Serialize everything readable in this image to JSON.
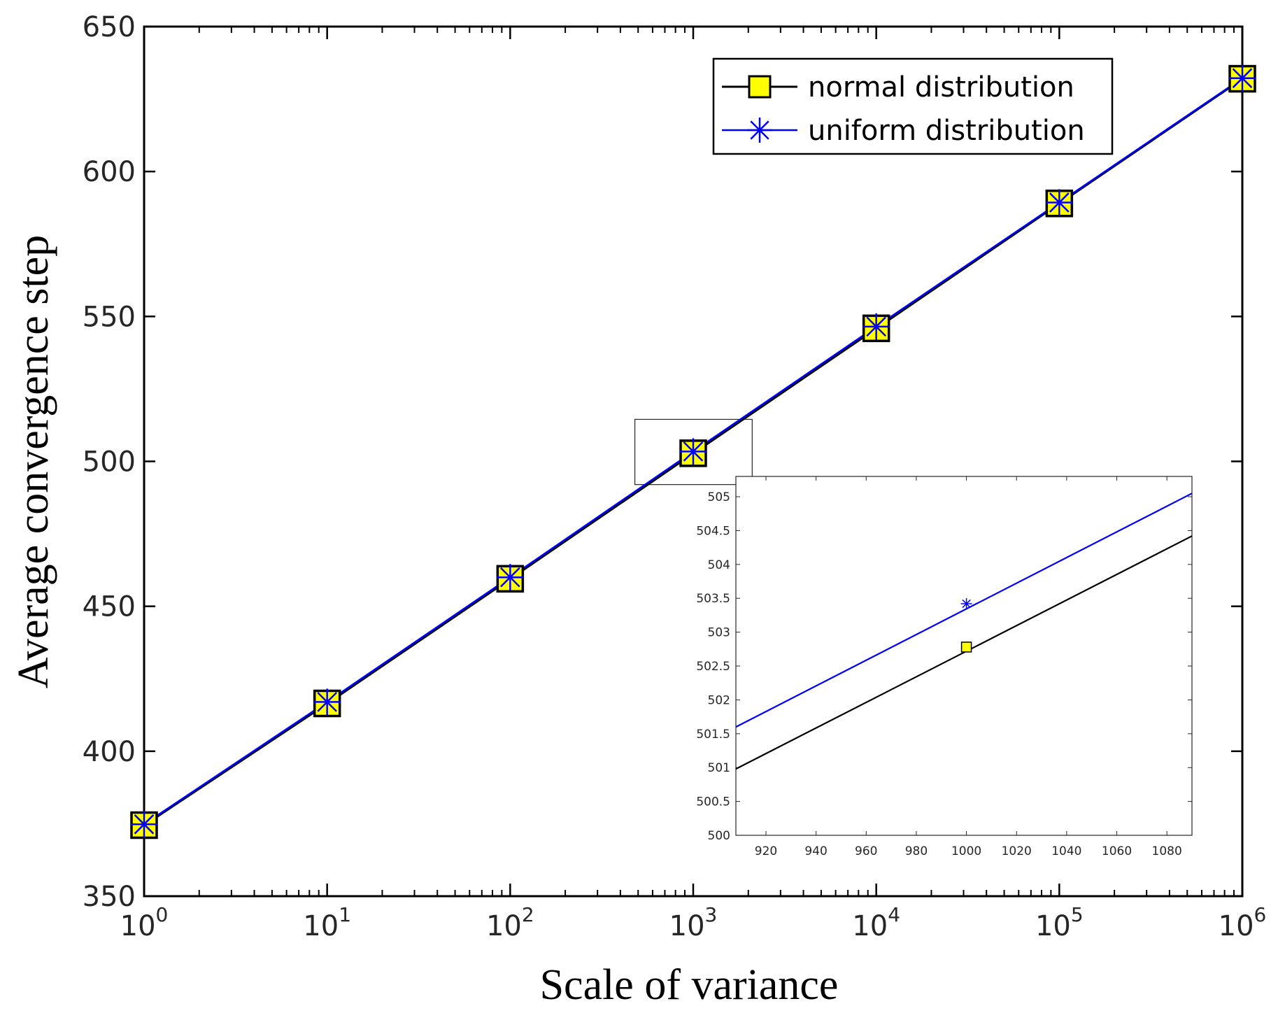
{
  "chart_data": {
    "type": "line",
    "xscale": "log",
    "title": "",
    "xlabel": "Scale of variance",
    "ylabel": "Average convergence step",
    "xlim": [
      1,
      1000000
    ],
    "ylim": [
      350,
      650
    ],
    "x_ticks": [
      {
        "value": 1,
        "base": "10",
        "exp": "0"
      },
      {
        "value": 10,
        "base": "10",
        "exp": "1"
      },
      {
        "value": 100,
        "base": "10",
        "exp": "2"
      },
      {
        "value": 1000,
        "base": "10",
        "exp": "3"
      },
      {
        "value": 10000,
        "base": "10",
        "exp": "4"
      },
      {
        "value": 100000,
        "base": "10",
        "exp": "5"
      },
      {
        "value": 1000000,
        "base": "10",
        "exp": "6"
      }
    ],
    "y_ticks": [
      "350",
      "400",
      "450",
      "500",
      "550",
      "600",
      "650"
    ],
    "x": [
      1,
      10,
      100,
      1000,
      10000,
      100000,
      1000000
    ],
    "series": [
      {
        "name": "normal distribution",
        "color": "#000000",
        "marker": "square",
        "marker_fill": "#ffff00",
        "values": [
          374.5,
          416.5,
          459.5,
          502.8,
          545.9,
          589.0,
          632.0
        ]
      },
      {
        "name": "uniform distribution",
        "color": "#0000ff",
        "marker": "asterisk",
        "values": [
          374.8,
          417.0,
          460.0,
          503.4,
          546.5,
          589.3,
          632.2
        ]
      }
    ],
    "legend": {
      "position": "top-right"
    },
    "grid": false,
    "inset": {
      "xlim": [
        908,
        1090
      ],
      "ylim": [
        500,
        505.3
      ],
      "x_ticks": [
        "920",
        "940",
        "960",
        "980",
        "1000",
        "1020",
        "1040",
        "1060",
        "1080"
      ],
      "y_ticks": [
        "500",
        "500.5",
        "501",
        "501.5",
        "502",
        "502.5",
        "503",
        "503.5",
        "504",
        "504.5",
        "505"
      ],
      "series": [
        {
          "name": "normal distribution",
          "color": "#000000",
          "line": [
            [
              908,
              500.98
            ],
            [
              1090,
              504.42
            ]
          ],
          "marker_point": [
            1000,
            502.78
          ]
        },
        {
          "name": "uniform distribution",
          "color": "#0000ff",
          "line": [
            [
              908,
              501.6
            ],
            [
              1090,
              505.05
            ]
          ],
          "marker_point": [
            1000,
            503.42
          ]
        }
      ]
    }
  }
}
